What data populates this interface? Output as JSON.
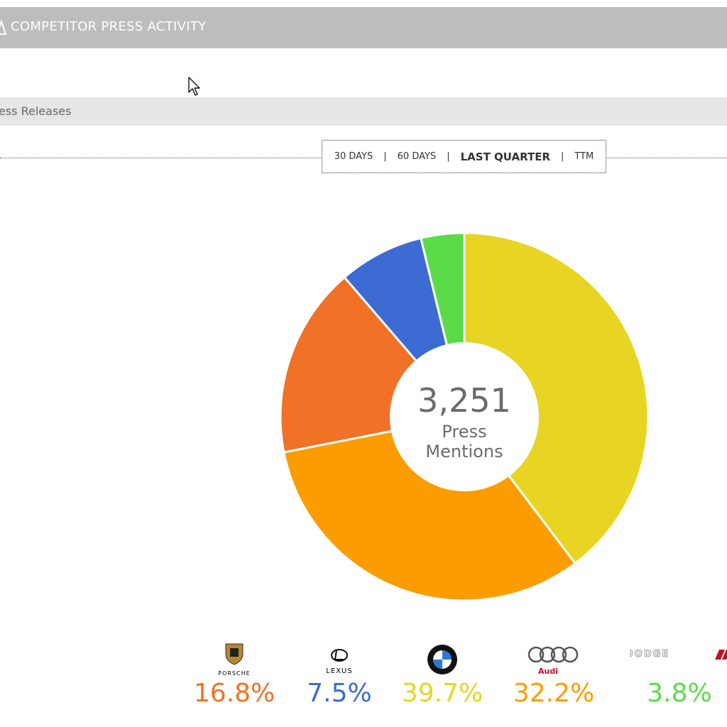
{
  "header": {
    "title": "COMPETITOR PRESS ACTIVITY",
    "icon": "megaphone-icon"
  },
  "subheader": {
    "label": "ess Releases"
  },
  "range_selector": {
    "options": [
      "30 DAYS",
      "60 DAYS",
      "LAST QUARTER",
      "TTM"
    ],
    "active": "LAST QUARTER"
  },
  "chart_data": {
    "type": "pie",
    "variant": "donut",
    "center_value": "3,251",
    "center_label_line1": "Press",
    "center_label_line2": "Mentions",
    "slices": [
      {
        "brand": "BMW",
        "value": 39.7,
        "color": "#e8d523"
      },
      {
        "brand": "Audi",
        "value": 32.2,
        "color": "#fb9d00"
      },
      {
        "brand": "Porsche",
        "value": 16.8,
        "color": "#f17127"
      },
      {
        "brand": "Lexus",
        "value": 7.5,
        "color": "#3b6bd3"
      },
      {
        "brand": "Dodge",
        "value": 3.8,
        "color": "#5cdb4a"
      }
    ]
  },
  "legend": [
    {
      "brand": "Porsche",
      "logo_text": "PORSCHE",
      "pct": "16.8%",
      "color": "#f17127"
    },
    {
      "brand": "Lexus",
      "logo_text": "LEXUS",
      "pct": "7.5%",
      "color": "#3b6bd3"
    },
    {
      "brand": "BMW",
      "logo_text": "",
      "pct": "39.7%",
      "color": "#e8d523"
    },
    {
      "brand": "Audi",
      "logo_text": "Audi",
      "pct": "32.2%",
      "color": "#fb9d00"
    },
    {
      "brand": "Dodge",
      "logo_text": "DODGE",
      "pct": "3.8%",
      "color": "#5cdb4a"
    }
  ]
}
